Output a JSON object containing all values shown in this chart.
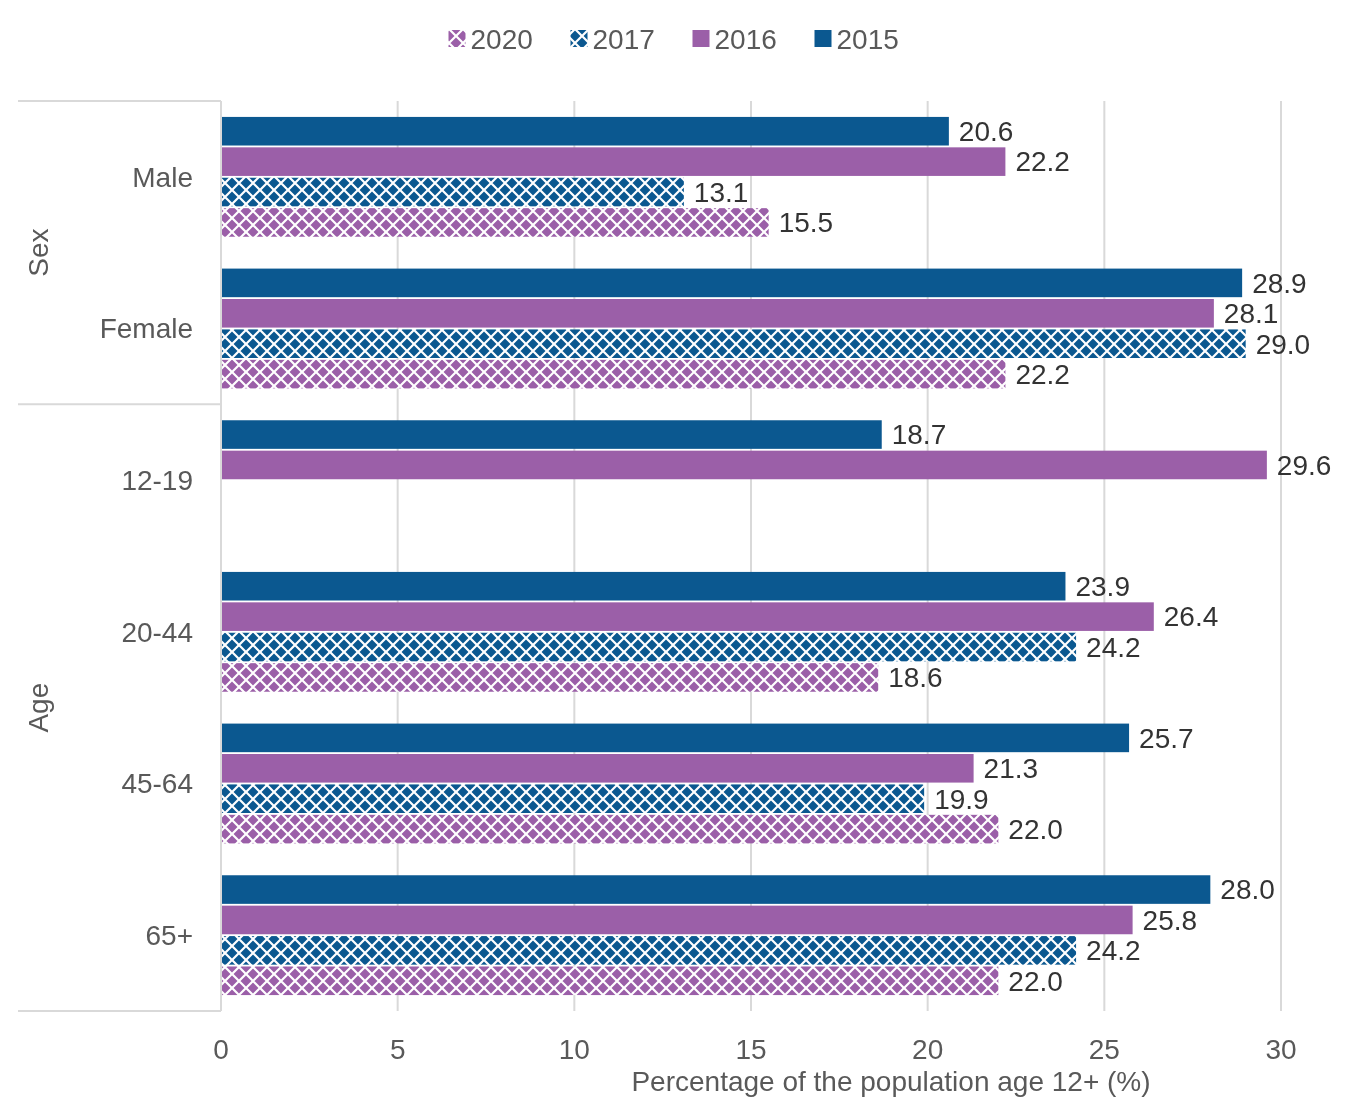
{
  "chart_data": {
    "type": "bar",
    "orientation": "horizontal",
    "categories": [
      "Male",
      "Female",
      "12-19",
      "20-44",
      "45-64",
      "65+"
    ],
    "series": [
      {
        "name": "2015",
        "color": "#0b5890",
        "values": [
          20.6,
          28.9,
          18.7,
          23.9,
          25.7,
          28.0
        ],
        "value_labels": [
          "20.6",
          "28.9",
          "18.7",
          "23.9",
          "25.7",
          "28.0"
        ]
      },
      {
        "name": "2016",
        "color": "#9b5fa8",
        "values": [
          22.2,
          28.1,
          29.6,
          26.4,
          21.3,
          25.8
        ],
        "value_labels": [
          "22.2",
          "28.1",
          "29.6",
          "26.4",
          "21.3",
          "25.8"
        ]
      },
      {
        "name": "2017",
        "color": "#0b5890",
        "values": [
          13.1,
          29.0,
          null,
          24.2,
          19.9,
          24.2
        ],
        "value_labels": [
          "13.1",
          "29.0",
          null,
          "24.2",
          "19.9",
          "24.2"
        ]
      },
      {
        "name": "2020",
        "color": "#9b5fa8",
        "values": [
          15.5,
          22.2,
          null,
          18.6,
          22.0,
          22.0
        ],
        "value_labels": [
          "15.5",
          "22.2",
          null,
          "18.6",
          "22.0",
          "22.0"
        ]
      }
    ],
    "xlim": [
      0,
      30
    ],
    "xticks": [
      0,
      5,
      10,
      15,
      20,
      25,
      30
    ],
    "xlabel": "Percentage of the population age 12+ (%)",
    "grid": "x",
    "legend": "top",
    "annotations": [
      "Sex",
      "Age"
    ]
  }
}
